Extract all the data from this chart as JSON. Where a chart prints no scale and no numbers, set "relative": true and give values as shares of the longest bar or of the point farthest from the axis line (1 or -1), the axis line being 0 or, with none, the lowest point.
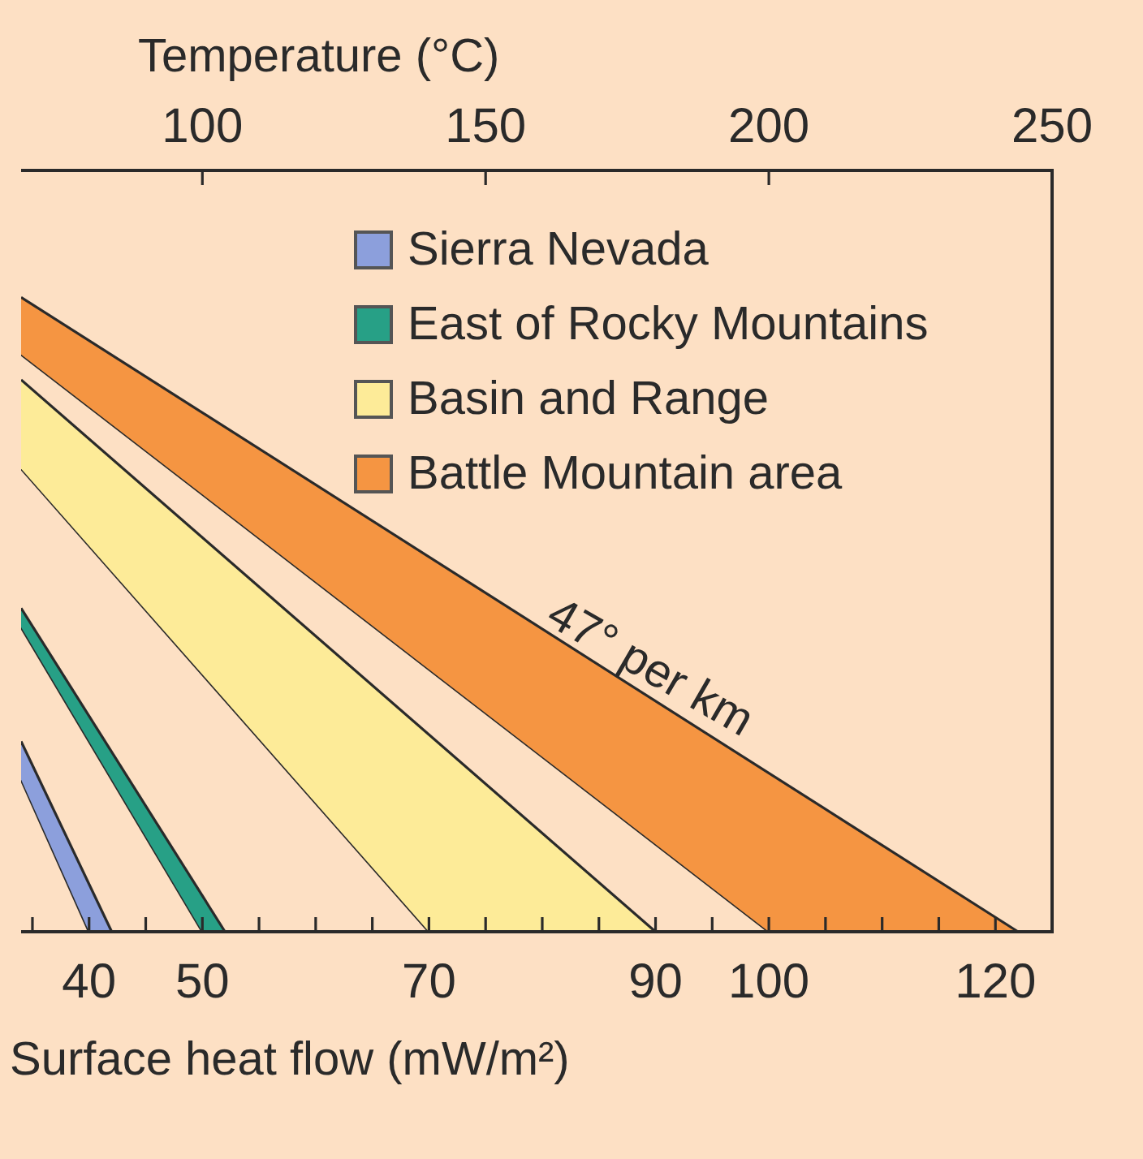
{
  "chart_data": {
    "type": "area",
    "relative": true,
    "xlabel": "Surface heat flow (mW/m²)",
    "x2label": "Temperature (°C)",
    "xlim": [
      34,
      125
    ],
    "xticks": [
      {
        "value": 35,
        "label": null
      },
      40,
      {
        "value": 45,
        "label": null
      },
      50,
      {
        "value": 55,
        "label": null
      },
      {
        "value": 60,
        "label": null
      },
      {
        "value": 65,
        "label": null
      },
      70,
      {
        "value": 75,
        "label": null
      },
      {
        "value": 80,
        "label": null
      },
      {
        "value": 85,
        "label": null
      },
      90,
      {
        "value": 95,
        "label": null
      },
      100,
      {
        "value": 105,
        "label": null
      },
      {
        "value": 110,
        "label": null
      },
      {
        "value": 115,
        "label": null
      },
      120
    ],
    "x2lim": [
      68,
      250
    ],
    "x2ticks": [
      100,
      150,
      200,
      250
    ],
    "legend": "top right",
    "series": [
      {
        "name": "Sierra Nevada",
        "color": "#8c9fdc",
        "x": [
          34,
          42
        ],
        "values": [
          0.3,
          0
        ]
      },
      {
        "type": "line",
        "color": "#2a2a2a",
        "x": [
          34,
          40,
          42
        ],
        "values": [
          0.24,
          0,
          0
        ]
      },
      {
        "name": "East of Rocky Mountains",
        "color": "#27a086",
        "x": [
          34,
          52
        ],
        "values": [
          0.51,
          0
        ]
      },
      {
        "type": "line",
        "color": "#2a2a2a",
        "x": [
          34,
          50,
          52
        ],
        "values": [
          0.48,
          0,
          0
        ]
      },
      {
        "name": "Basin and Range",
        "color": "#fdeb98",
        "x": [
          34,
          90
        ],
        "values": [
          0.87,
          0
        ]
      },
      {
        "type": "line",
        "color": "#2a2a2a",
        "x": [
          34,
          70,
          90
        ],
        "values": [
          0.73,
          0,
          0
        ]
      },
      {
        "name": "Battle Mountain area",
        "color": "#f59542",
        "x": [
          34,
          122
        ],
        "values": [
          1.0,
          0
        ]
      },
      {
        "type": "line",
        "color": "#2a2a2a",
        "x": [
          34,
          100,
          122
        ],
        "values": [
          0.91,
          0,
          0
        ]
      }
    ],
    "annotations": [
      "47° per km"
    ]
  }
}
